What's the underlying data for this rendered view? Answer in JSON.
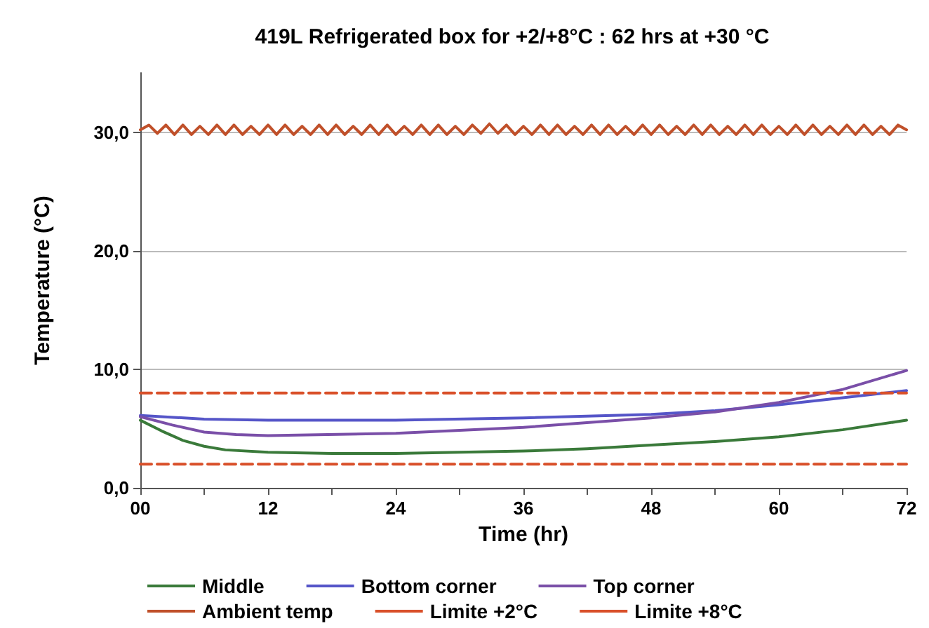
{
  "chart_data": {
    "type": "line",
    "title": "419L Refrigerated box for +2/+8°C : 62 hrs at +30 °C",
    "xlabel": "Time (hr)",
    "ylabel": "Temperature (°C)",
    "xlim": [
      0,
      72
    ],
    "xticks": [
      {
        "value": 0,
        "label": "00"
      },
      {
        "value": 6,
        "label": null
      },
      12,
      {
        "value": 18,
        "label": null
      },
      24,
      {
        "value": 30,
        "label": null
      },
      36,
      {
        "value": 42,
        "label": null
      },
      48,
      {
        "value": 54,
        "label": null
      },
      60,
      {
        "value": 66,
        "label": null
      },
      72
    ],
    "ylim": [
      0,
      35
    ],
    "yticks": [
      {
        "value": 0,
        "label": "0,0"
      },
      {
        "value": 10,
        "label": "10,0"
      },
      {
        "value": 20,
        "label": "20,0"
      },
      {
        "value": 30,
        "label": "30,0"
      }
    ],
    "grid": "y",
    "legend": "bottom",
    "marker": "none",
    "line_style": "solid",
    "series": [
      {
        "name": "Middle",
        "color": "#3a7a3a",
        "x": [
          0,
          2,
          4,
          6,
          8,
          12,
          18,
          24,
          30,
          36,
          42,
          48,
          54,
          60,
          66,
          72
        ],
        "values": [
          5.7,
          4.8,
          4.0,
          3.5,
          3.2,
          3.0,
          2.9,
          2.9,
          3.0,
          3.1,
          3.3,
          3.6,
          3.9,
          4.3,
          4.9,
          5.7
        ]
      },
      {
        "name": "Bottom corner",
        "color": "#5555c8",
        "x": [
          0,
          6,
          12,
          24,
          36,
          48,
          54,
          60,
          66,
          72
        ],
        "values": [
          6.1,
          5.8,
          5.7,
          5.7,
          5.9,
          6.2,
          6.5,
          7.0,
          7.6,
          8.2
        ]
      },
      {
        "name": "Top corner",
        "color": "#7a4fa8",
        "x": [
          0,
          3,
          6,
          9,
          12,
          24,
          36,
          48,
          54,
          60,
          66,
          72
        ],
        "values": [
          6.0,
          5.3,
          4.7,
          4.5,
          4.4,
          4.6,
          5.1,
          5.9,
          6.4,
          7.2,
          8.3,
          9.9
        ]
      },
      {
        "name": "Ambient temp",
        "color": "#c0502a",
        "x": [
          0,
          0.8,
          1.6,
          2.4,
          3.2,
          4,
          4.8,
          5.6,
          6.4,
          7.2,
          8,
          8.8,
          9.6,
          10.4,
          11.2,
          12,
          12.8,
          13.6,
          14.4,
          15.2,
          16,
          16.8,
          17.6,
          18.4,
          19.2,
          20,
          20.8,
          21.6,
          22.4,
          23.2,
          24,
          24.8,
          25.6,
          26.4,
          27.2,
          28,
          28.8,
          29.6,
          30.4,
          31.2,
          32,
          32.8,
          33.6,
          34.4,
          35.2,
          36,
          36.8,
          37.6,
          38.4,
          39.2,
          40,
          40.8,
          41.6,
          42.4,
          43.2,
          44,
          44.8,
          45.6,
          46.4,
          47.2,
          48,
          48.8,
          49.6,
          50.4,
          51.2,
          52,
          52.8,
          53.6,
          54.4,
          55.2,
          56,
          56.8,
          57.6,
          58.4,
          59.2,
          60,
          60.8,
          61.6,
          62.4,
          63.2,
          64,
          64.8,
          65.6,
          66.4,
          67.2,
          68,
          68.8,
          69.6,
          70.4,
          71.2,
          72
        ],
        "values": [
          30.2,
          30.6,
          29.9,
          30.6,
          29.8,
          30.6,
          29.8,
          30.5,
          29.8,
          30.6,
          29.8,
          30.6,
          29.8,
          30.5,
          29.8,
          30.6,
          29.8,
          30.6,
          29.8,
          30.5,
          29.8,
          30.6,
          29.8,
          30.6,
          29.8,
          30.5,
          29.8,
          30.6,
          29.8,
          30.6,
          29.8,
          30.5,
          29.8,
          30.6,
          29.8,
          30.6,
          29.8,
          30.5,
          29.8,
          30.6,
          29.9,
          30.7,
          29.9,
          30.6,
          29.8,
          30.5,
          29.8,
          30.6,
          29.8,
          30.6,
          29.8,
          30.5,
          29.8,
          30.6,
          29.8,
          30.6,
          29.8,
          30.5,
          29.8,
          30.6,
          29.8,
          30.6,
          29.8,
          30.5,
          29.8,
          30.6,
          29.8,
          30.6,
          29.8,
          30.5,
          29.8,
          30.6,
          29.8,
          30.6,
          29.8,
          30.5,
          29.8,
          30.6,
          29.8,
          30.6,
          29.8,
          30.5,
          29.8,
          30.6,
          29.8,
          30.6,
          29.8,
          30.5,
          29.8,
          30.6,
          30.2
        ]
      },
      {
        "name": "Limite +2°C",
        "color": "#d9502a",
        "line_style": "dashed",
        "x": [
          0,
          72
        ],
        "values": [
          2,
          2
        ]
      },
      {
        "name": "Limite +8°C",
        "color": "#d9502a",
        "line_style": "dashed",
        "x": [
          0,
          72
        ],
        "values": [
          8,
          8
        ]
      }
    ]
  }
}
